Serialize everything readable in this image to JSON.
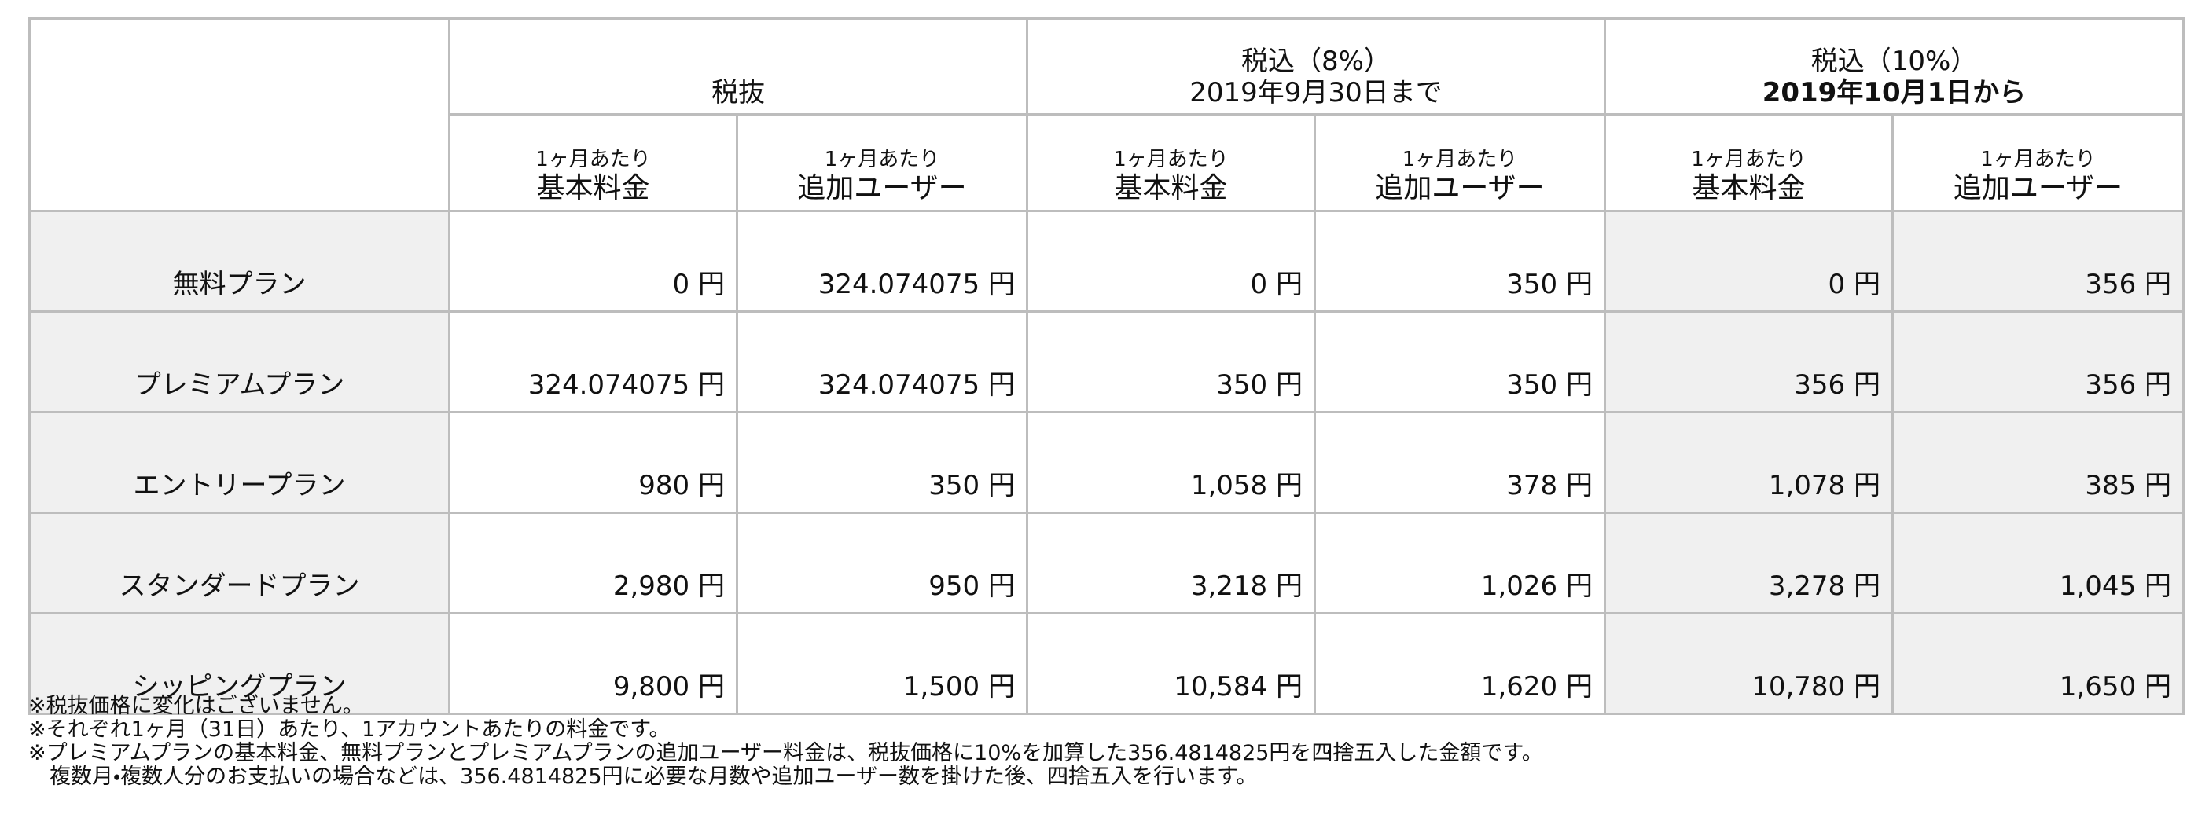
{
  "table": {
    "groups": [
      {
        "label": "税抜"
      },
      {
        "label": "税込（8%）",
        "sub": "2019年9月30日まで"
      },
      {
        "label": "税込（10%）",
        "sub": "2019年10月1日から"
      }
    ],
    "subheaders": [
      {
        "line1": "1ヶ月あたり",
        "line2": "基本料金"
      },
      {
        "line1": "1ヶ月あたり",
        "line2": "追加ユーザー"
      },
      {
        "line1": "1ヶ月あたり",
        "line2": "基本料金"
      },
      {
        "line1": "1ヶ月あたり",
        "line2": "追加ユーザー"
      },
      {
        "line1": "1ヶ月あたり",
        "line2": "基本料金"
      },
      {
        "line1": "1ヶ月あたり",
        "line2": "追加ユーザー"
      }
    ],
    "rows": [
      {
        "plan": "無料プラン",
        "cells": [
          "0 円",
          "324.074075 円",
          "0 円",
          "350 円",
          "0 円",
          "356 円"
        ]
      },
      {
        "plan": "プレミアムプラン",
        "cells": [
          "324.074075 円",
          "324.074075 円",
          "350 円",
          "350 円",
          "356 円",
          "356 円"
        ]
      },
      {
        "plan": "エントリープラン",
        "cells": [
          "980 円",
          "350 円",
          "1,058 円",
          "378 円",
          "1,078 円",
          "385 円"
        ]
      },
      {
        "plan": "スタンダードプラン",
        "cells": [
          "2,980 円",
          "950 円",
          "3,218 円",
          "1,026 円",
          "3,278 円",
          "1,045 円"
        ]
      },
      {
        "plan": "シッピングプラン",
        "cells": [
          "9,800 円",
          "1,500 円",
          "10,584 円",
          "1,620 円",
          "10,780 円",
          "1,650 円"
        ]
      }
    ]
  },
  "notes": [
    "※税抜価格に変化はございません。",
    "※それぞれ1ヶ月（31日）あたり、1アカウントあたりの料金です。",
    "※プレミアムプランの基本料金、無料プランとプレミアムプランの追加ユーザー料金は、税抜価格に10%を加算した356.4814825円を四捨五入した金額です。",
    "　複数月・複数人分のお支払いの場合などは、356.4814825円に必要な月数や追加ユーザー数を掛けた後、四捨五入を行います。"
  ]
}
